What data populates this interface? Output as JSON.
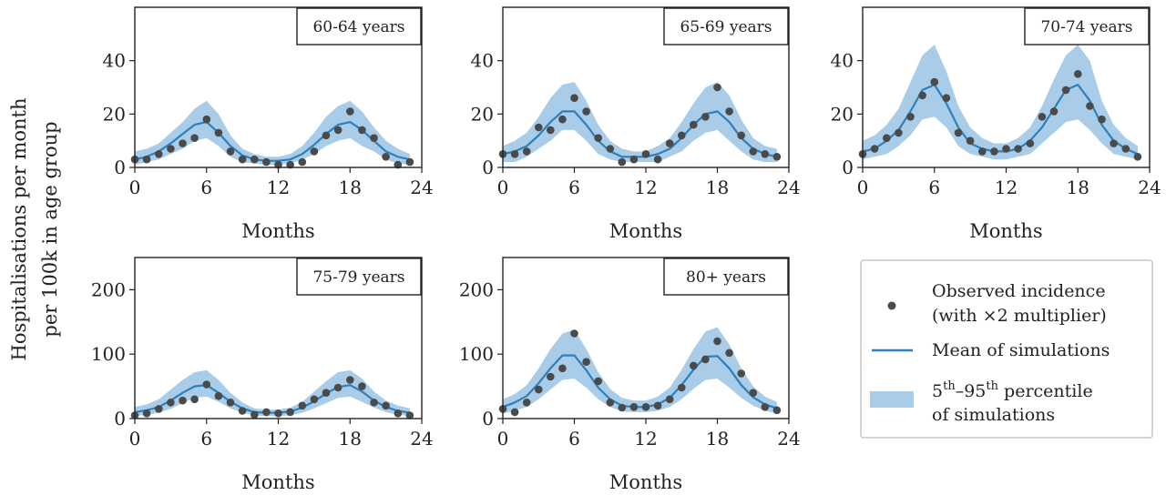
{
  "figure": {
    "ylabel_line1": "Hospitalisations per month",
    "ylabel_line2": "per 100k in age group"
  },
  "legend": {
    "observed_line1": "Observed incidence",
    "observed_line2": "(with ×2 multiplier)",
    "mean": "Mean of simulations",
    "band_prefix": "5",
    "band_sup1": "th",
    "band_dash": "–95",
    "band_sup2": "th",
    "band_suffix": " percentile",
    "band_line2": "of simulations"
  },
  "colors": {
    "band": "#a9cde8",
    "mean_line": "#2f7fba",
    "points": "#4a4a4a",
    "axes": "#222222"
  },
  "chart_data": [
    {
      "type": "line",
      "title": "60-64 years",
      "xlabel": "Months",
      "xlim": [
        0,
        24
      ],
      "ylim": [
        0,
        60
      ],
      "xticks": [
        0,
        6,
        12,
        18,
        24
      ],
      "yticks": [
        0,
        20,
        40
      ],
      "series": [
        {
          "name": "Observed incidence (with ×2 multiplier)",
          "type": "scatter",
          "x": [
            0,
            1,
            2,
            3,
            4,
            5,
            6,
            7,
            8,
            9,
            10,
            11,
            12,
            13,
            14,
            15,
            16,
            17,
            18,
            19,
            20,
            21,
            22,
            23
          ],
          "y": [
            3,
            3,
            5,
            7,
            9,
            11,
            18,
            13,
            6,
            3,
            3,
            2,
            1,
            1,
            2,
            6,
            12,
            14,
            21,
            14,
            11,
            4,
            1,
            2
          ]
        },
        {
          "name": "Mean of simulations",
          "type": "line",
          "x": [
            0,
            1,
            2,
            3,
            4,
            5,
            6,
            7,
            8,
            9,
            10,
            11,
            12,
            13,
            14,
            15,
            16,
            17,
            18,
            19,
            20,
            21,
            22,
            23
          ],
          "y": [
            3,
            4,
            6,
            9,
            12.5,
            16,
            17,
            13,
            8,
            4.5,
            3,
            2.5,
            2.5,
            3,
            5,
            8.5,
            12.5,
            16,
            17,
            14,
            10,
            6,
            4,
            3
          ]
        },
        {
          "name": "5th–95th percentile of simulations",
          "type": "band",
          "x": [
            0,
            1,
            2,
            3,
            4,
            5,
            6,
            7,
            8,
            9,
            10,
            11,
            12,
            13,
            14,
            15,
            16,
            17,
            18,
            19,
            20,
            21,
            22,
            23
          ],
          "lower": [
            1,
            2,
            3,
            5,
            7,
            10,
            11,
            8,
            4,
            2,
            1.5,
            1,
            1,
            1.5,
            3,
            5,
            8,
            10,
            11,
            8,
            6,
            3,
            1.5,
            1
          ],
          "upper": [
            6,
            7,
            9,
            13,
            17,
            22,
            25,
            20,
            12,
            7,
            5,
            4,
            4,
            5,
            8,
            13,
            19,
            23,
            25,
            21,
            15,
            10,
            7,
            5
          ]
        }
      ]
    },
    {
      "type": "line",
      "title": "65-69 years",
      "xlabel": "Months",
      "xlim": [
        0,
        24
      ],
      "ylim": [
        0,
        60
      ],
      "xticks": [
        0,
        6,
        12,
        18,
        24
      ],
      "yticks": [
        0,
        20,
        40
      ],
      "series": [
        {
          "name": "Observed incidence (with ×2 multiplier)",
          "type": "scatter",
          "x": [
            0,
            1,
            2,
            3,
            4,
            5,
            6,
            7,
            8,
            9,
            10,
            11,
            12,
            13,
            14,
            15,
            16,
            17,
            18,
            19,
            20,
            21,
            22,
            23
          ],
          "y": [
            5,
            5,
            6,
            15,
            14,
            18,
            26,
            21,
            11,
            7,
            2,
            3,
            5,
            3,
            9,
            12,
            16,
            19,
            30,
            21,
            12,
            6,
            5,
            4
          ]
        },
        {
          "name": "Mean of simulations",
          "type": "line",
          "x": [
            0,
            1,
            2,
            3,
            4,
            5,
            6,
            7,
            8,
            9,
            10,
            11,
            12,
            13,
            14,
            15,
            16,
            17,
            18,
            19,
            20,
            21,
            22,
            23
          ],
          "y": [
            5,
            6,
            8,
            12,
            17,
            21,
            21,
            16,
            10,
            6,
            4,
            4,
            4,
            5,
            7,
            11,
            16,
            20,
            21,
            17,
            11,
            7,
            5,
            4
          ]
        },
        {
          "name": "5th–95th percentile of simulations",
          "type": "band",
          "x": [
            0,
            1,
            2,
            3,
            4,
            5,
            6,
            7,
            8,
            9,
            10,
            11,
            12,
            13,
            14,
            15,
            16,
            17,
            18,
            19,
            20,
            21,
            22,
            23
          ],
          "lower": [
            2,
            2,
            4,
            7,
            10,
            14,
            14,
            10,
            5,
            3,
            2,
            2,
            2,
            2,
            4,
            6,
            10,
            13,
            14,
            10,
            6,
            3,
            2,
            2
          ],
          "upper": [
            8,
            10,
            13,
            19,
            26,
            31,
            32,
            25,
            16,
            10,
            7,
            6,
            6,
            8,
            11,
            17,
            24,
            30,
            32,
            27,
            18,
            11,
            8,
            7
          ]
        }
      ]
    },
    {
      "type": "line",
      "title": "70-74 years",
      "xlabel": "Months",
      "xlim": [
        0,
        24
      ],
      "ylim": [
        0,
        60
      ],
      "xticks": [
        0,
        6,
        12,
        18,
        24
      ],
      "yticks": [
        0,
        20,
        40
      ],
      "series": [
        {
          "name": "Observed incidence (with ×2 multiplier)",
          "type": "scatter",
          "x": [
            0,
            1,
            2,
            3,
            4,
            5,
            6,
            7,
            8,
            9,
            10,
            11,
            12,
            13,
            14,
            15,
            16,
            17,
            18,
            19,
            20,
            21,
            22,
            23
          ],
          "y": [
            5,
            7,
            11,
            13,
            19,
            27,
            32,
            26,
            13,
            10,
            6,
            6,
            7,
            7,
            9,
            19,
            21,
            29,
            35,
            23,
            18,
            9,
            7,
            4
          ]
        },
        {
          "name": "Mean of simulations",
          "type": "line",
          "x": [
            0,
            1,
            2,
            3,
            4,
            5,
            6,
            7,
            8,
            9,
            10,
            11,
            12,
            13,
            14,
            15,
            16,
            17,
            18,
            19,
            20,
            21,
            22,
            23
          ],
          "y": [
            6,
            7,
            10,
            14,
            21,
            29,
            31,
            24,
            15,
            9,
            7,
            6,
            6,
            7,
            10,
            15,
            22,
            29,
            31,
            25,
            16,
            10,
            7,
            5
          ]
        },
        {
          "name": "5th–95th percentile of simulations",
          "type": "band",
          "x": [
            0,
            1,
            2,
            3,
            4,
            5,
            6,
            7,
            8,
            9,
            10,
            11,
            12,
            13,
            14,
            15,
            16,
            17,
            18,
            19,
            20,
            21,
            22,
            23
          ],
          "lower": [
            3,
            4,
            5,
            8,
            12,
            18,
            19,
            15,
            8,
            5,
            4,
            3,
            3,
            4,
            5,
            9,
            13,
            17,
            18,
            14,
            9,
            5,
            4,
            3
          ],
          "upper": [
            10,
            12,
            16,
            22,
            32,
            42,
            46,
            36,
            23,
            15,
            11,
            9,
            9,
            11,
            15,
            23,
            33,
            42,
            46,
            40,
            25,
            16,
            11,
            8
          ]
        }
      ]
    },
    {
      "type": "line",
      "title": "75-79 years",
      "xlabel": "Months",
      "xlim": [
        0,
        24
      ],
      "ylim": [
        0,
        250
      ],
      "xticks": [
        0,
        6,
        12,
        18,
        24
      ],
      "yticks": [
        0,
        100,
        200
      ],
      "series": [
        {
          "name": "Observed incidence (with ×2 multiplier)",
          "type": "scatter",
          "x": [
            0,
            1,
            2,
            3,
            4,
            5,
            6,
            7,
            8,
            9,
            10,
            11,
            12,
            13,
            14,
            15,
            16,
            17,
            18,
            19,
            20,
            21,
            22,
            23
          ],
          "y": [
            5,
            8,
            15,
            25,
            28,
            30,
            53,
            35,
            25,
            12,
            6,
            10,
            8,
            10,
            20,
            30,
            40,
            48,
            60,
            50,
            25,
            20,
            8,
            5
          ]
        },
        {
          "name": "Mean of simulations",
          "type": "line",
          "x": [
            0,
            1,
            2,
            3,
            4,
            5,
            6,
            7,
            8,
            9,
            10,
            11,
            12,
            13,
            14,
            15,
            16,
            17,
            18,
            19,
            20,
            21,
            22,
            23
          ],
          "y": [
            10,
            13,
            18,
            28,
            40,
            50,
            52,
            40,
            26,
            16,
            10,
            9,
            9,
            11,
            17,
            27,
            39,
            49,
            52,
            42,
            28,
            18,
            12,
            9
          ]
        },
        {
          "name": "5th–95th percentile of simulations",
          "type": "band",
          "x": [
            0,
            1,
            2,
            3,
            4,
            5,
            6,
            7,
            8,
            9,
            10,
            11,
            12,
            13,
            14,
            15,
            16,
            17,
            18,
            19,
            20,
            21,
            22,
            23
          ],
          "lower": [
            4,
            6,
            9,
            15,
            24,
            32,
            34,
            26,
            16,
            9,
            5,
            4,
            4,
            5,
            9,
            16,
            24,
            32,
            34,
            26,
            17,
            10,
            6,
            4
          ],
          "upper": [
            18,
            22,
            30,
            45,
            60,
            72,
            75,
            60,
            40,
            25,
            16,
            14,
            14,
            17,
            26,
            42,
            58,
            72,
            75,
            62,
            42,
            28,
            20,
            16
          ]
        }
      ]
    },
    {
      "type": "line",
      "title": "80+ years",
      "xlabel": "Months",
      "xlim": [
        0,
        24
      ],
      "ylim": [
        0,
        250
      ],
      "xticks": [
        0,
        6,
        12,
        18,
        24
      ],
      "yticks": [
        0,
        100,
        200
      ],
      "series": [
        {
          "name": "Observed incidence (with ×2 multiplier)",
          "type": "scatter",
          "x": [
            0,
            1,
            2,
            3,
            4,
            5,
            6,
            7,
            8,
            9,
            10,
            11,
            12,
            13,
            14,
            15,
            16,
            17,
            18,
            19,
            20,
            21,
            22,
            23
          ],
          "y": [
            15,
            10,
            25,
            45,
            65,
            78,
            132,
            88,
            58,
            25,
            17,
            18,
            18,
            20,
            30,
            48,
            82,
            92,
            120,
            102,
            70,
            40,
            18,
            13
          ]
        },
        {
          "name": "Mean of simulations",
          "type": "line",
          "x": [
            0,
            1,
            2,
            3,
            4,
            5,
            6,
            7,
            8,
            9,
            10,
            11,
            12,
            13,
            14,
            15,
            16,
            17,
            18,
            19,
            20,
            21,
            22,
            23
          ],
          "y": [
            18,
            25,
            35,
            55,
            78,
            98,
            98,
            75,
            48,
            30,
            20,
            18,
            18,
            22,
            32,
            52,
            76,
            96,
            97,
            78,
            52,
            33,
            22,
            16
          ]
        },
        {
          "name": "5th–95th percentile of simulations",
          "type": "band",
          "x": [
            0,
            1,
            2,
            3,
            4,
            5,
            6,
            7,
            8,
            9,
            10,
            11,
            12,
            13,
            14,
            15,
            16,
            17,
            18,
            19,
            20,
            21,
            22,
            23
          ],
          "lower": [
            8,
            12,
            18,
            30,
            45,
            60,
            62,
            48,
            30,
            18,
            11,
            10,
            10,
            12,
            18,
            30,
            46,
            60,
            62,
            48,
            32,
            20,
            12,
            8
          ],
          "upper": [
            30,
            38,
            52,
            78,
            108,
            132,
            138,
            108,
            72,
            46,
            32,
            28,
            28,
            34,
            48,
            76,
            108,
            135,
            142,
            115,
            78,
            50,
            34,
            26
          ]
        }
      ]
    }
  ]
}
